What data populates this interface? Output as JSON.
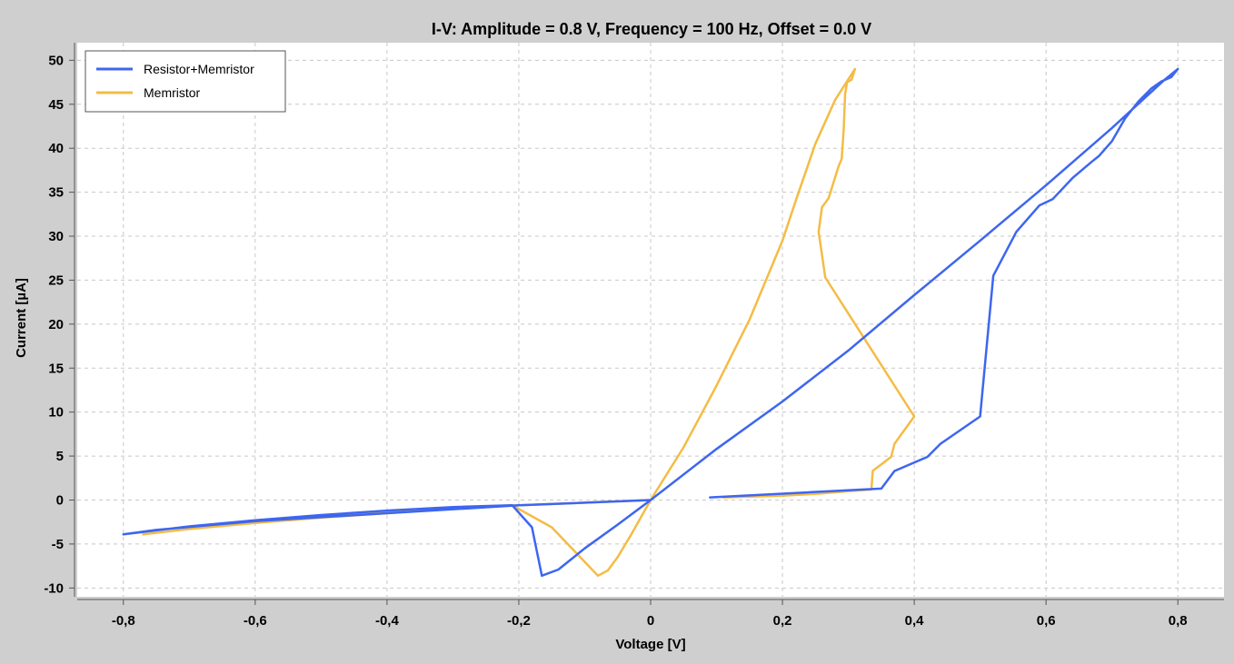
{
  "chart_data": {
    "type": "line",
    "title": "I-V: Amplitude = 0.8 V, Frequency = 100 Hz, Offset = 0.0 V",
    "xlabel": "Voltage [V]",
    "ylabel": "Current [µA]",
    "xlim": [
      -0.87,
      0.87
    ],
    "ylim": [
      -11,
      52
    ],
    "x_ticks": [
      -0.8,
      -0.6,
      -0.4,
      -0.2,
      0,
      0.2,
      0.4,
      0.6,
      0.8
    ],
    "x_tick_labels": [
      "-0,8",
      "-0,6",
      "-0,4",
      "-0,2",
      "0",
      "0,2",
      "0,4",
      "0,6",
      "0,8"
    ],
    "y_ticks": [
      -10,
      -5,
      0,
      5,
      10,
      15,
      20,
      25,
      30,
      35,
      40,
      45,
      50
    ],
    "y_tick_labels": [
      "-10",
      "-5",
      "0",
      "5",
      "10",
      "15",
      "20",
      "25",
      "30",
      "35",
      "40",
      "45",
      "50"
    ],
    "grid": true,
    "legend_position": "top-left",
    "series": [
      {
        "name": "Resistor+Memristor",
        "color": "#3d66f0",
        "points": [
          [
            0.09,
            0.3
          ],
          [
            0.35,
            1.3
          ],
          [
            0.37,
            3.3
          ],
          [
            0.42,
            4.9
          ],
          [
            0.44,
            6.4
          ],
          [
            0.5,
            9.5
          ],
          [
            0.52,
            25.5
          ],
          [
            0.555,
            30.5
          ],
          [
            0.59,
            33.5
          ],
          [
            0.61,
            34.2
          ],
          [
            0.64,
            36.6
          ],
          [
            0.67,
            38.5
          ],
          [
            0.68,
            39.1
          ],
          [
            0.7,
            40.8
          ],
          [
            0.72,
            43.4
          ],
          [
            0.74,
            45.3
          ],
          [
            0.76,
            46.8
          ],
          [
            0.775,
            47.6
          ],
          [
            0.79,
            48.1
          ],
          [
            0.8,
            49.0
          ],
          [
            0.78,
            47.8
          ],
          [
            0.7,
            42.3
          ],
          [
            0.6,
            35.8
          ],
          [
            0.5,
            29.5
          ],
          [
            0.4,
            23.3
          ],
          [
            0.3,
            17.0
          ],
          [
            0.2,
            11.2
          ],
          [
            0.1,
            5.8
          ],
          [
            0.0,
            0.0
          ],
          [
            -0.05,
            -2.8
          ],
          [
            -0.1,
            -5.5
          ],
          [
            -0.14,
            -7.9
          ],
          [
            -0.165,
            -8.6
          ],
          [
            -0.18,
            -3.1
          ],
          [
            -0.21,
            -0.6
          ],
          [
            -0.3,
            -0.8
          ],
          [
            -0.4,
            -1.2
          ],
          [
            -0.5,
            -1.7
          ],
          [
            -0.6,
            -2.3
          ],
          [
            -0.7,
            -3.0
          ],
          [
            -0.8,
            -3.9
          ],
          [
            -0.75,
            -3.4
          ],
          [
            -0.6,
            -2.4
          ],
          [
            -0.4,
            -1.5
          ],
          [
            -0.2,
            -0.6
          ],
          [
            0.0,
            0.0
          ]
        ]
      },
      {
        "name": "Memristor",
        "color": "#f4bc45",
        "points": [
          [
            0.11,
            0.3
          ],
          [
            0.2,
            0.5
          ],
          [
            0.25,
            0.7
          ],
          [
            0.3,
            1.0
          ],
          [
            0.335,
            1.2
          ],
          [
            0.337,
            3.3
          ],
          [
            0.365,
            4.9
          ],
          [
            0.37,
            6.4
          ],
          [
            0.4,
            9.5
          ],
          [
            0.265,
            25.3
          ],
          [
            0.255,
            30.5
          ],
          [
            0.26,
            33.3
          ],
          [
            0.27,
            34.3
          ],
          [
            0.285,
            37.9
          ],
          [
            0.29,
            38.8
          ],
          [
            0.293,
            42.2
          ],
          [
            0.295,
            46.1
          ],
          [
            0.298,
            47.5
          ],
          [
            0.305,
            47.8
          ],
          [
            0.31,
            49.0
          ],
          [
            0.28,
            45.5
          ],
          [
            0.25,
            40.5
          ],
          [
            0.22,
            34.0
          ],
          [
            0.2,
            29.5
          ],
          [
            0.15,
            20.5
          ],
          [
            0.1,
            13.0
          ],
          [
            0.05,
            6.0
          ],
          [
            0.0,
            0.0
          ],
          [
            -0.03,
            -4.0
          ],
          [
            -0.05,
            -6.5
          ],
          [
            -0.065,
            -8.0
          ],
          [
            -0.08,
            -8.6
          ],
          [
            -0.15,
            -3.1
          ],
          [
            -0.21,
            -0.6
          ],
          [
            -0.3,
            -0.9
          ],
          [
            -0.4,
            -1.5
          ],
          [
            -0.5,
            -2.0
          ],
          [
            -0.6,
            -2.6
          ],
          [
            -0.7,
            -3.3
          ],
          [
            -0.77,
            -3.9
          ],
          [
            -0.7,
            -3.3
          ],
          [
            -0.5,
            -1.9
          ],
          [
            -0.3,
            -0.9
          ],
          [
            -0.1,
            -0.3
          ],
          [
            0.0,
            0.0
          ]
        ]
      }
    ]
  }
}
